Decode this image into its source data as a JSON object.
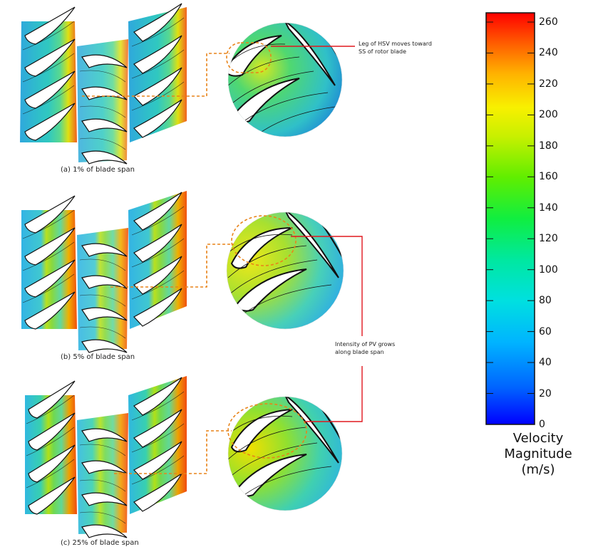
{
  "figure": {
    "panels": [
      {
        "caption": "(a) 1% of blade span"
      },
      {
        "caption": "(b) 5% of blade span"
      },
      {
        "caption": "(c) 25% of blade span"
      }
    ],
    "annotations": [
      {
        "text": "Leg of HSV moves toward\nSS of rotor blade"
      },
      {
        "text": "Intensity of PV grows\nalong blade span"
      }
    ],
    "colorbar": {
      "title": "Velocity\nMagnitude\n(m/s)",
      "ticks": [
        "260",
        "240",
        "220",
        "200",
        "180",
        "160",
        "140",
        "120",
        "100",
        "80",
        "60",
        "40",
        "20",
        "0"
      ],
      "colormap": [
        "#0000ff",
        "#0080ff",
        "#00c8ff",
        "#00e6d2",
        "#00f078",
        "#40f000",
        "#a8f000",
        "#f0f000",
        "#ffc800",
        "#ff8c00",
        "#ff4600",
        "#ff0000"
      ]
    },
    "colors": {
      "callout": "#e8841a",
      "annotation_line": "#e0181e",
      "blade": "#ffffff",
      "contour": "#111111"
    }
  }
}
